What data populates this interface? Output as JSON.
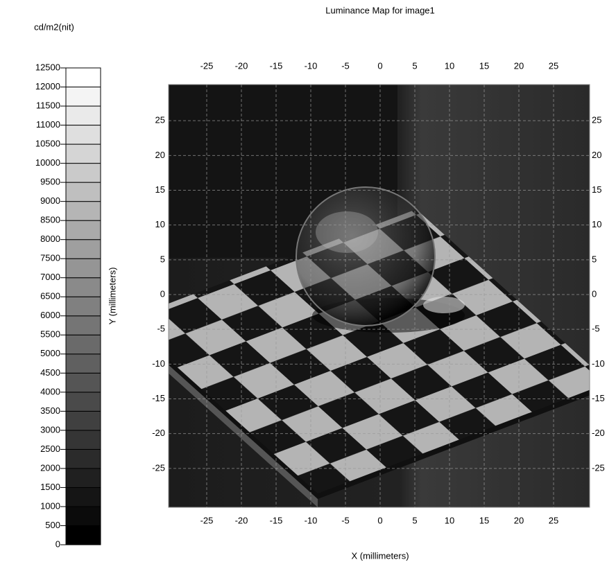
{
  "chart_data": {
    "type": "heatmap",
    "title": "Luminance Map for image1",
    "x_label": "X (millimeters)",
    "y_label": "Y (millimeters)",
    "xlim": [
      -30.5,
      30.2
    ],
    "xticks": [
      -25,
      -20,
      -15,
      -10,
      -5,
      0,
      5,
      10,
      15,
      20,
      25
    ],
    "ylim": [
      -30.6,
      30.2
    ],
    "yticks": [
      -25,
      -20,
      -15,
      -10,
      -5,
      0,
      5,
      10,
      15,
      20,
      25
    ],
    "grid": true,
    "colorbar": {
      "label": "cd/m2(nit)",
      "lim": [
        0,
        12500
      ],
      "ticks": [
        0,
        500,
        1000,
        1500,
        2000,
        2500,
        3000,
        3500,
        4000,
        4500,
        5000,
        5500,
        6000,
        6500,
        7000,
        7500,
        8000,
        8500,
        9000,
        9500,
        10000,
        10500,
        11000,
        11500,
        12000,
        12500
      ]
    }
  }
}
